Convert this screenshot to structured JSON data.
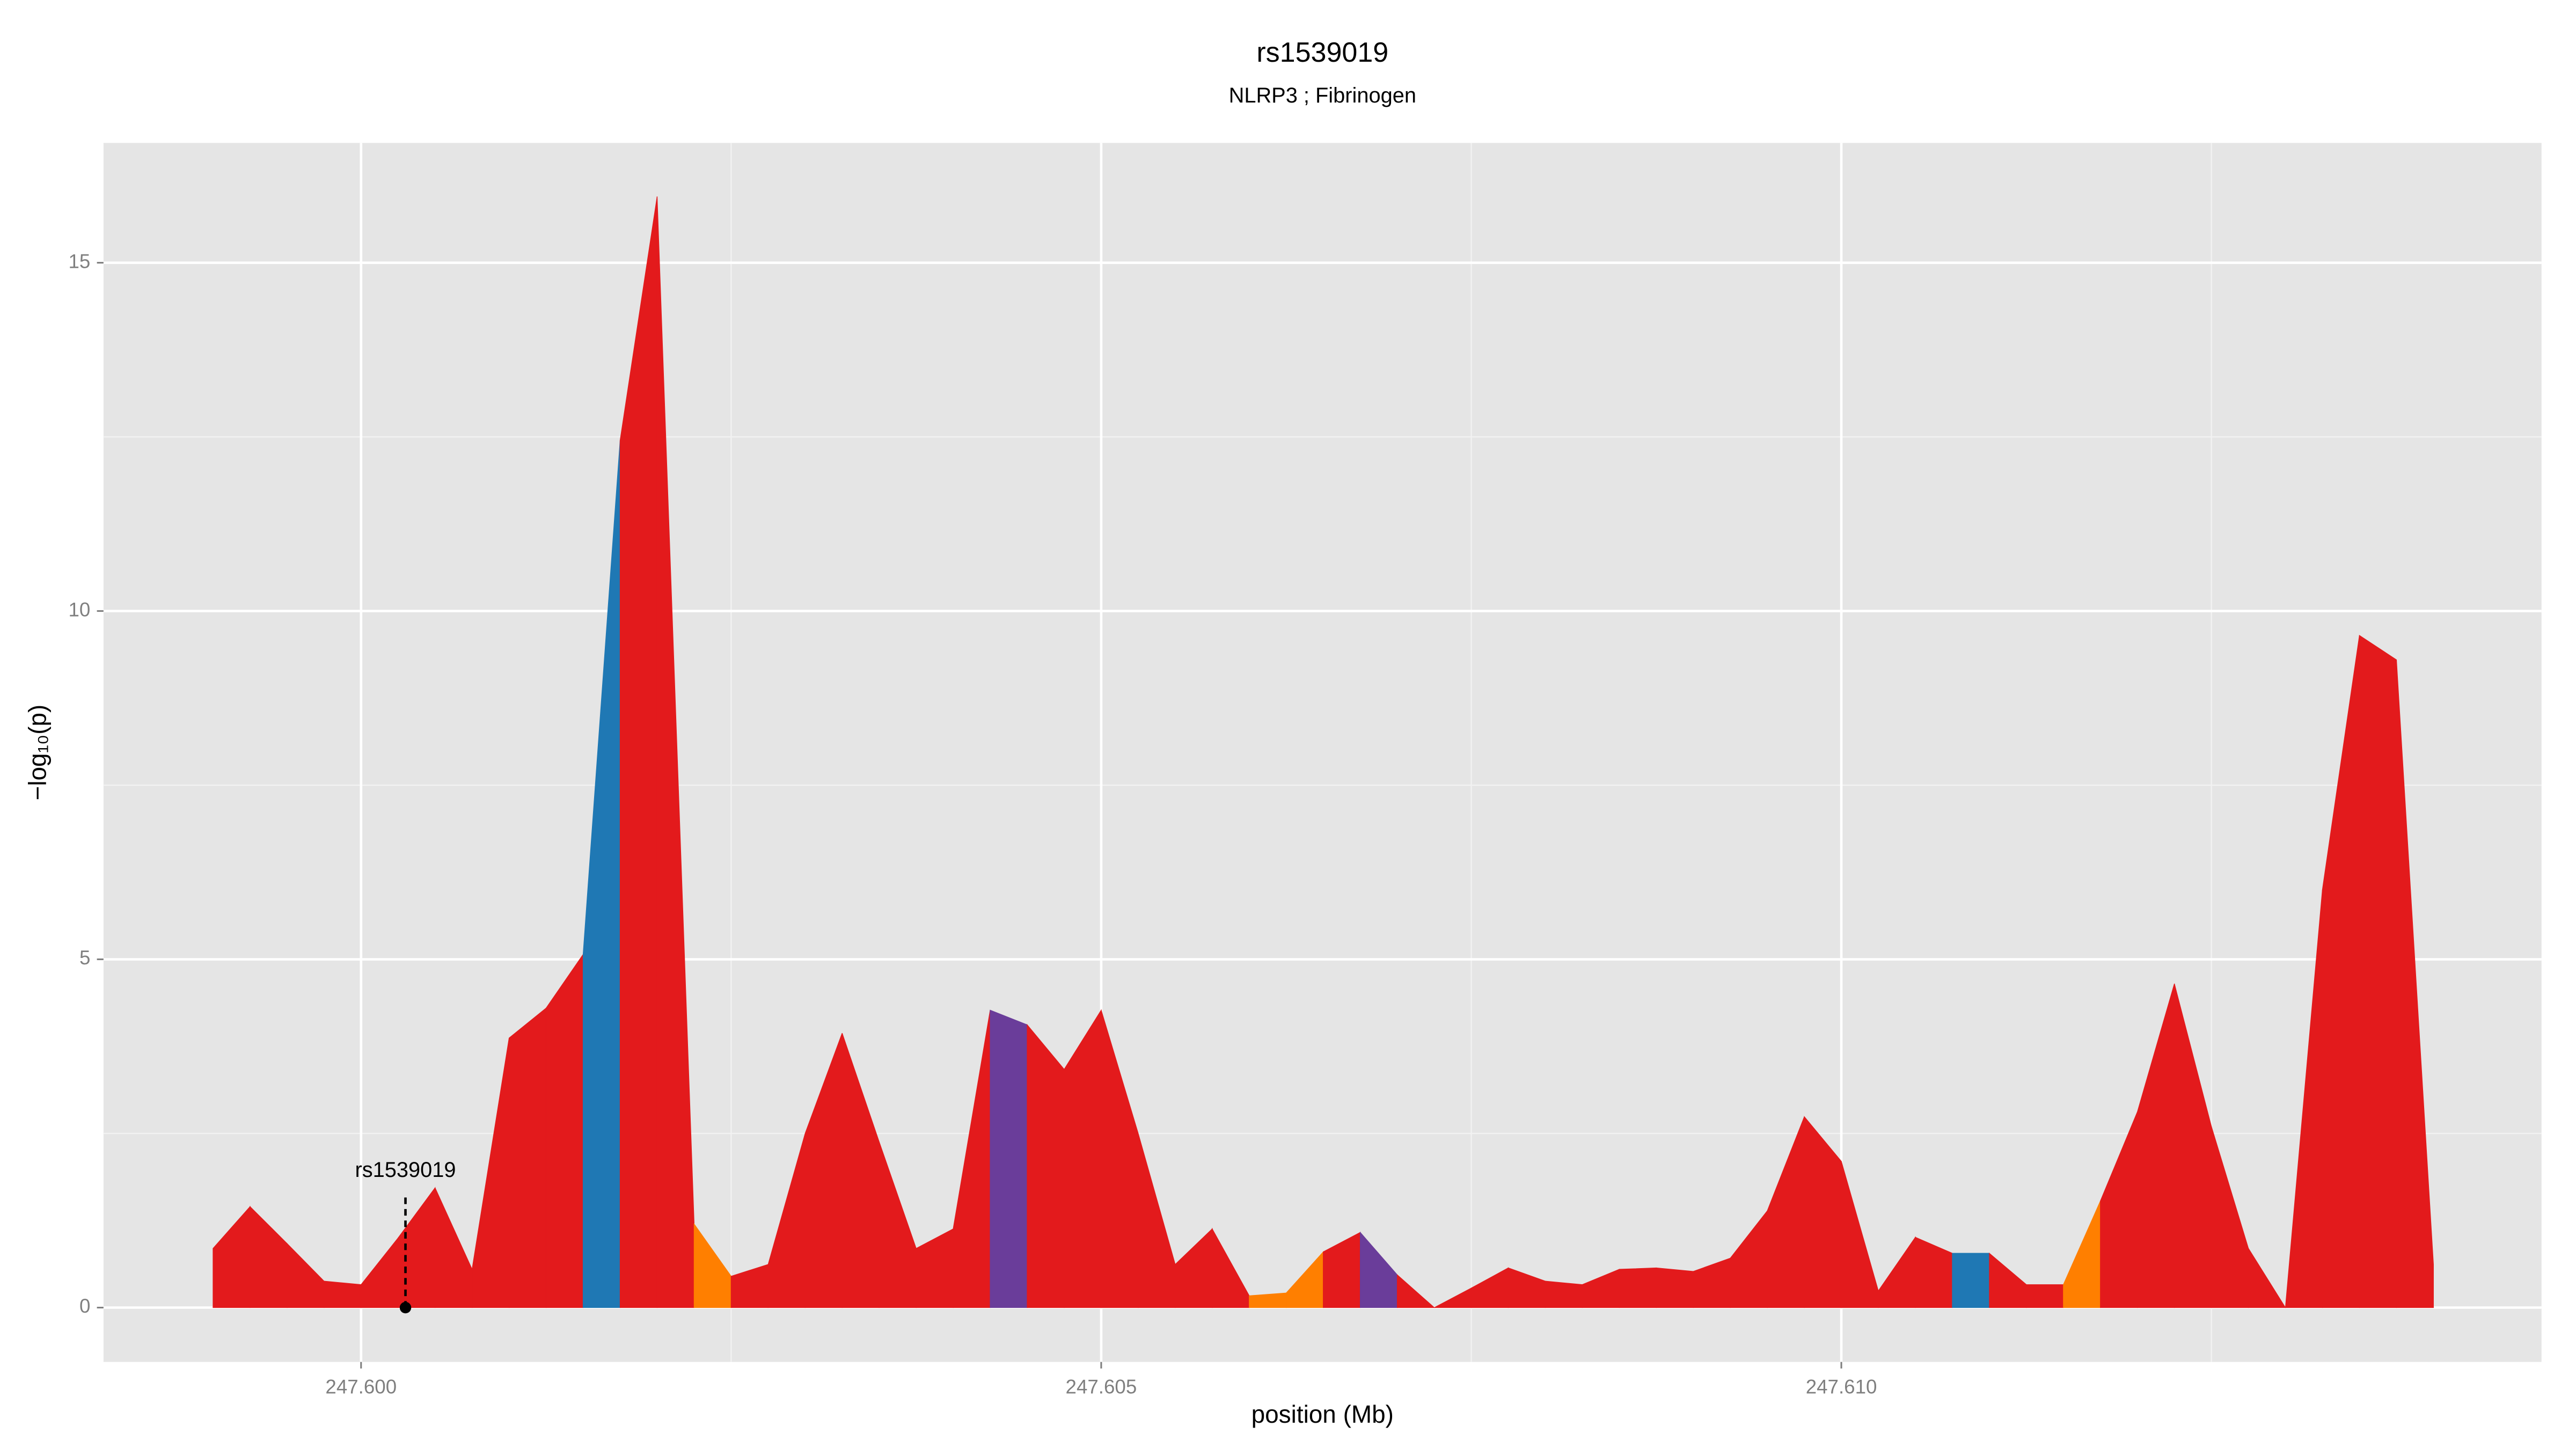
{
  "chart_data": {
    "type": "area",
    "title": "rs1539019",
    "subtitle": "NLRP3 ; Fibrinogen",
    "xlabel": "position (Mb)",
    "ylabel": "−log₁₀(p)",
    "x": [
      247.599,
      247.59925,
      247.5995,
      247.59975,
      247.6,
      247.60025,
      247.6005,
      247.60075,
      247.601,
      247.60125,
      247.6015,
      247.60175,
      247.602,
      247.60225,
      247.6025,
      247.60275,
      247.603,
      247.60325,
      247.6035,
      247.60375,
      247.604,
      247.60425,
      247.6045,
      247.60475,
      247.605,
      247.60525,
      247.6055,
      247.60575,
      247.606,
      247.60625,
      247.6065,
      247.60675,
      247.607,
      247.60725,
      247.6075,
      247.60775,
      247.608,
      247.60825,
      247.6085,
      247.60875,
      247.609,
      247.60925,
      247.6095,
      247.60975,
      247.61,
      247.61025,
      247.6105,
      247.61075,
      247.611,
      247.61125,
      247.6115,
      247.61175,
      247.612,
      247.61225,
      247.6125,
      247.61275,
      247.613,
      247.61325,
      247.6135,
      247.61375,
      247.614
    ],
    "values": [
      0.85,
      1.45,
      0.92,
      0.38,
      0.33,
      1.0,
      1.72,
      0.55,
      3.87,
      4.3,
      5.07,
      12.45,
      15.95,
      1.2,
      0.45,
      0.62,
      2.5,
      3.94,
      2.38,
      0.85,
      1.13,
      4.27,
      4.06,
      3.42,
      4.27,
      2.5,
      0.62,
      1.13,
      0.17,
      0.21,
      0.8,
      1.08,
      0.47,
      0,
      0.28,
      0.57,
      0.38,
      0.33,
      0.55,
      0.57,
      0.52,
      0.71,
      1.39,
      2.74,
      2.1,
      0.24,
      1.01,
      0.78,
      0.78,
      0.33,
      0.33,
      1.53,
      2.81,
      4.65,
      2.6,
      0.85,
      0,
      6.0,
      9.65,
      9.3,
      0.62
    ],
    "segment_colors": [
      "#e31a1c",
      "#e31a1c",
      "#e31a1c",
      "#e31a1c",
      "#e31a1c",
      "#e31a1c",
      "#e31a1c",
      "#e31a1c",
      "#e31a1c",
      "#e31a1c",
      "#1f78b4",
      "#e31a1c",
      "#e31a1c",
      "#ff7f00",
      "#e31a1c",
      "#e31a1c",
      "#e31a1c",
      "#e31a1c",
      "#e31a1c",
      "#e31a1c",
      "#e31a1c",
      "#6a3d9a",
      "#e31a1c",
      "#e31a1c",
      "#e31a1c",
      "#e31a1c",
      "#e31a1c",
      "#e31a1c",
      "#ff7f00",
      "#ff7f00",
      "#e31a1c",
      "#6a3d9a",
      "#e31a1c",
      "#e31a1c",
      "#e31a1c",
      "#e31a1c",
      "#e31a1c",
      "#e31a1c",
      "#e31a1c",
      "#e31a1c",
      "#e31a1c",
      "#e31a1c",
      "#e31a1c",
      "#e31a1c",
      "#e31a1c",
      "#e31a1c",
      "#e31a1c",
      "#1f78b4",
      "#e31a1c",
      "#e31a1c",
      "#ff7f00",
      "#e31a1c",
      "#e31a1c",
      "#e31a1c",
      "#e31a1c",
      "#e31a1c",
      "#e31a1c",
      "#e31a1c",
      "#e31a1c",
      "#e31a1c"
    ],
    "annotation": {
      "text": "rs1539019",
      "x": 247.6003,
      "y": 0
    },
    "xlim": [
      247.59826,
      247.61473
    ],
    "ylim": [
      -0.78,
      16.72
    ],
    "xticks": [
      {
        "value": 247.6,
        "label": "247.600"
      },
      {
        "value": 247.605,
        "label": "247.605"
      },
      {
        "value": 247.61,
        "label": "247.610"
      }
    ],
    "yticks": [
      0,
      5,
      10,
      15
    ],
    "x_minor_grid": [
      247.5975,
      247.6025,
      247.6075,
      247.6125
    ],
    "y_minor_grid": [
      2.5,
      7.5,
      12.5
    ],
    "grid": true
  }
}
